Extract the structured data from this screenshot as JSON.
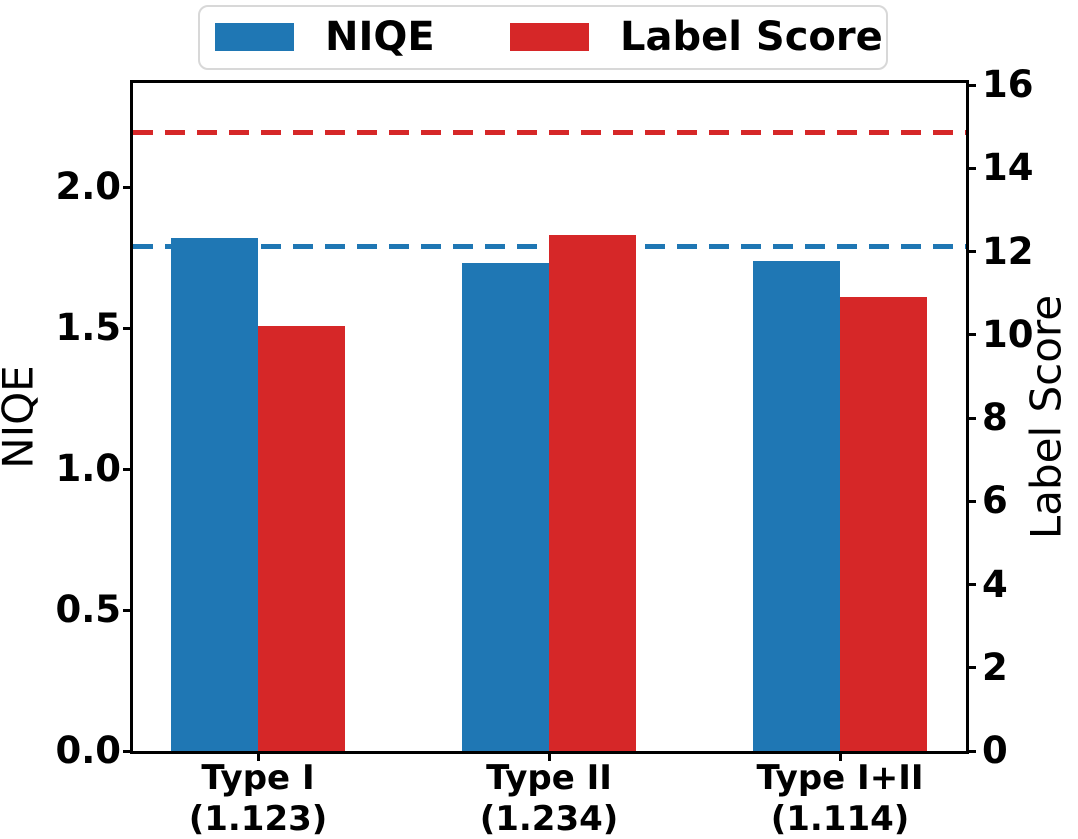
{
  "chart_data": {
    "type": "bar",
    "title": "",
    "grid": false,
    "categories": [
      {
        "label": "Type I",
        "sublabel": "(1.123)"
      },
      {
        "label": "Type II",
        "sublabel": "(1.234)"
      },
      {
        "label": "Type I+II",
        "sublabel": "(1.114)"
      }
    ],
    "series": [
      {
        "name": "NIQE",
        "axis": "left",
        "color": "#1f77b4",
        "values": [
          1.82,
          1.73,
          1.74
        ]
      },
      {
        "name": "Label Score",
        "axis": "right",
        "color": "#d62728",
        "values": [
          10.2,
          12.4,
          10.9
        ]
      }
    ],
    "ref_lines": [
      {
        "axis": "left",
        "value": 1.79,
        "color": "#1f77b4",
        "style": "dashed"
      },
      {
        "axis": "right",
        "value": 14.85,
        "color": "#d62728",
        "style": "dashed"
      }
    ],
    "left_axis": {
      "label": "NIQE",
      "tick_labels": [
        "0.0",
        "0.5",
        "1.0",
        "1.5",
        "2.0"
      ],
      "tick_values": [
        0,
        0.5,
        1.0,
        1.5,
        2.0
      ],
      "range": [
        0,
        2.37
      ]
    },
    "right_axis": {
      "label": "Label Score",
      "tick_labels": [
        "0",
        "2",
        "4",
        "6",
        "8",
        "10",
        "12",
        "14",
        "16"
      ],
      "tick_values": [
        0,
        2,
        4,
        6,
        8,
        10,
        12,
        14,
        16
      ],
      "range": [
        0,
        16.05
      ]
    },
    "legend": {
      "position": "top",
      "entries": [
        {
          "label": "NIQE",
          "color": "#1f77b4"
        },
        {
          "label": "Label Score",
          "color": "#d62728"
        }
      ]
    }
  }
}
